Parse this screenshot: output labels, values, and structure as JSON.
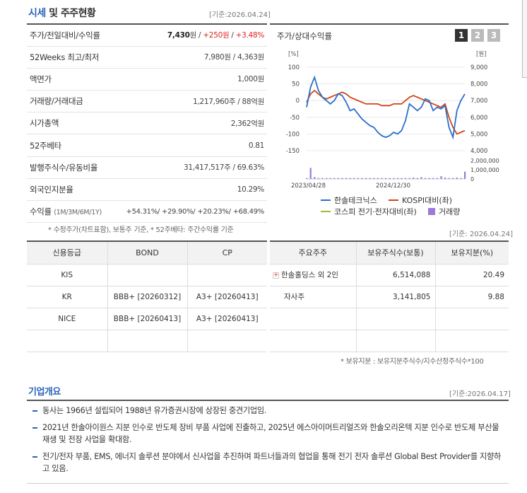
{
  "header": {
    "title_main": "시세",
    "title_sub": " 및 주주현황",
    "date": "[기준:2026.04.24]"
  },
  "market": [
    {
      "label": "주가/전일대비/수익률",
      "price": "7,430",
      "unit": "원",
      "diff": "+250원",
      "rate": "+3.48%"
    },
    {
      "label": "52Weeks 최고/최저",
      "value": "7,980원 / 4,363원"
    },
    {
      "label": "액면가",
      "value": "1,000원"
    },
    {
      "label": "거래량/거래대금",
      "value": "1,217,960주 / 88억원"
    },
    {
      "label": "시가총액",
      "value": "2,362억원"
    },
    {
      "label": "52주베타",
      "value": "0.81"
    },
    {
      "label": "발행주식수/유동비율",
      "value": "31,417,517주 / 69.63%"
    },
    {
      "label": "외국인지분율",
      "value": "10.29%"
    },
    {
      "label": "수익률",
      "label_small": "(1M/3M/6M/1Y)",
      "value": "+54.31%/ +29.90%/ +20.23%/ +68.49%"
    }
  ],
  "market_note": "* 수정주가(차트표함), 보통주 기준, * 52주베타: 주간수익률 기준",
  "chart_header": {
    "title": "주가/상대수익률",
    "buttons": [
      "1",
      "2",
      "3"
    ]
  },
  "chart_data": {
    "type": "line",
    "left_axis_unit": "[%]",
    "right_axis_unit": "[원]",
    "left_ticks": [
      "100",
      "50",
      "0",
      "-50",
      "-100",
      "-150"
    ],
    "right_ticks": [
      "9,000",
      "8,000",
      "7,000",
      "6,000",
      "5,000",
      "4,000"
    ],
    "volume_ticks": [
      "2,000,000",
      "1,000,000",
      "0"
    ],
    "x_ticks": [
      "2023/04/28",
      "2024/12/30"
    ],
    "ylim_left": [
      -150,
      100
    ],
    "series": [
      {
        "name": "한솔테크닉스",
        "color": "#2a6fc9",
        "values": [
          -20,
          40,
          70,
          30,
          10,
          0,
          -10,
          0,
          20,
          15,
          -5,
          -30,
          -25,
          -40,
          -55,
          -65,
          -75,
          -80,
          -95,
          -105,
          -110,
          -105,
          -95,
          -100,
          -90,
          -60,
          -10,
          -20,
          -30,
          -20,
          5,
          0,
          -30,
          -20,
          -25,
          -15,
          -80,
          -110,
          -30,
          0,
          20
        ]
      },
      {
        "name": "KOSPI대비(좌)",
        "color": "#d0451b",
        "values": [
          -5,
          20,
          30,
          20,
          10,
          5,
          10,
          15,
          20,
          25,
          20,
          10,
          5,
          0,
          -5,
          -10,
          -10,
          -10,
          -10,
          -15,
          -15,
          -15,
          -10,
          -10,
          -10,
          0,
          10,
          15,
          10,
          5,
          0,
          -5,
          -10,
          -15,
          -20,
          -10,
          -50,
          -80,
          -100,
          -95,
          -90
        ]
      },
      {
        "name": "코스피 전기·전자대비(좌)",
        "color": "#9abf2e",
        "values": []
      },
      {
        "name": "거래량",
        "color": "#9b7ad8",
        "values": [
          0.1,
          1.2,
          0.2,
          0.1,
          0.1,
          0.1,
          0.1,
          0.1,
          0.1,
          0.1,
          0.1,
          0.1,
          0.1,
          0.1,
          0.1,
          0.1,
          0.1,
          0.1,
          0.1,
          0.1,
          0.1,
          0.1,
          0.1,
          0.1,
          0.1,
          0.1,
          0.1,
          0.15,
          0.1,
          0.2,
          0.1,
          0.1,
          0.1,
          0.1,
          0.3,
          0.15,
          0.1,
          0.1,
          0.15,
          0.1,
          0.8
        ]
      }
    ]
  },
  "credit": {
    "headers": [
      "신용등급",
      "BOND",
      "CP"
    ],
    "rows": [
      [
        "KIS",
        "",
        ""
      ],
      [
        "KR",
        "BBB+ [20260312]",
        "A3+ [20260413]"
      ],
      [
        "NICE",
        "BBB+ [20260413]",
        "A3+ [20260413]"
      ],
      [
        "",
        "",
        ""
      ]
    ]
  },
  "holders": {
    "date": "[기준: 2026.04.24]",
    "headers": [
      "주요주주",
      "보유주식수(보통)",
      "보유지분(%)"
    ],
    "rows": [
      {
        "name": "한솔홀딩스 외 2인",
        "shares": "6,514,088",
        "pct": "20.49",
        "expand": "+"
      },
      {
        "name": "자사주",
        "shares": "3,141,805",
        "pct": "9.88",
        "expand": ""
      },
      {
        "name": "",
        "shares": "",
        "pct": "",
        "expand": ""
      },
      {
        "name": "",
        "shares": "",
        "pct": "",
        "expand": ""
      }
    ],
    "note": "* 보유지분 : 보유지분주식수/지수산정주식수*100"
  },
  "overview": {
    "title": "기업개요",
    "date": "[기준:2026.04.17]",
    "items": [
      "동사는 1966년 설립되어 1988년 유가증권시장에 상장된 중견기업임.",
      "2021년 한솔아이원스 지분 인수로 반도체 장비 부품 사업에 진출하고, 2025년 에스아이머트리얼즈와 한솔오리온텍 지분 인수로 반도체 부산물 재생 및 전장 사업을 확대함.",
      "전기/전자 부품, EMS, 에너지 솔루션 분야에서 신사업을 추진하며 파트너들과의 협업을 통해 전기 전자 솔루션 Global Best Provider를 지향하고 있음."
    ]
  }
}
